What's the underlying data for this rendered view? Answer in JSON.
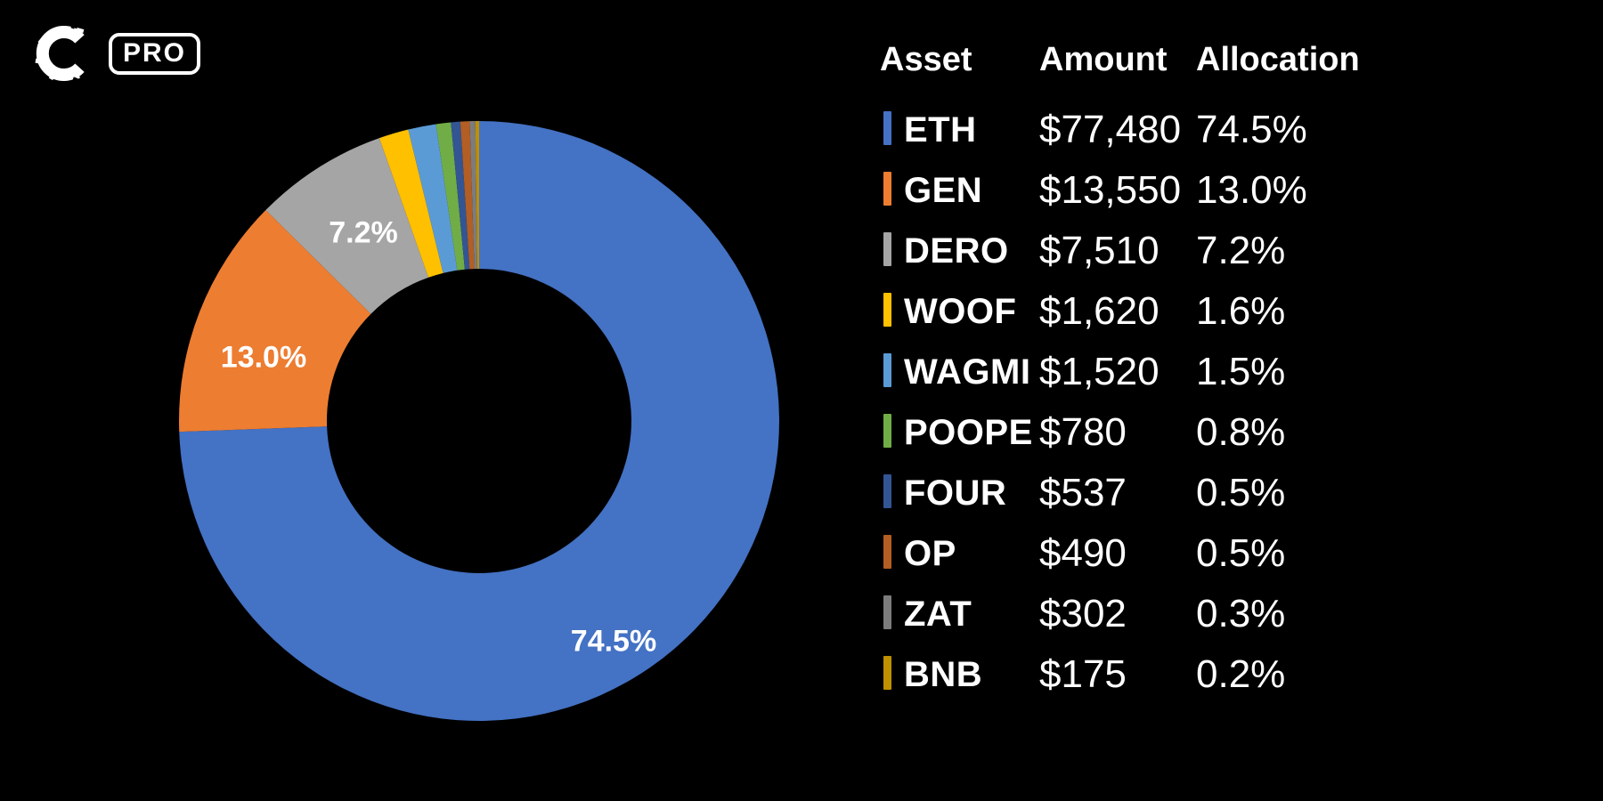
{
  "colors": {
    "background": "#000000",
    "text": "#FFFFFF"
  },
  "logo": {
    "icon": "coinstats-c-icon",
    "badge_label": "PRO"
  },
  "table": {
    "headers": [
      "Asset",
      "Amount",
      "Allocation"
    ],
    "rows": [
      {
        "asset": "ETH",
        "amount": "$77,480",
        "allocation": "74.5%",
        "color": "#4472C4"
      },
      {
        "asset": "GEN",
        "amount": "$13,550",
        "allocation": "13.0%",
        "color": "#ED7D31"
      },
      {
        "asset": "DERO",
        "amount": "$7,510",
        "allocation": "7.2%",
        "color": "#A5A5A5"
      },
      {
        "asset": "WOOF",
        "amount": "$1,620",
        "allocation": "1.6%",
        "color": "#FFC000"
      },
      {
        "asset": "WAGMI",
        "amount": "$1,520",
        "allocation": "1.5%",
        "color": "#5B9BD5"
      },
      {
        "asset": "POOPE",
        "amount": "$780",
        "allocation": "0.8%",
        "color": "#70AD47"
      },
      {
        "asset": "FOUR",
        "amount": "$537",
        "allocation": "0.5%",
        "color": "#335593"
      },
      {
        "asset": "OP",
        "amount": "$490",
        "allocation": "0.5%",
        "color": "#B25E25"
      },
      {
        "asset": "ZAT",
        "amount": "$302",
        "allocation": "0.3%",
        "color": "#7C7C7C"
      },
      {
        "asset": "BNB",
        "amount": "$175",
        "allocation": "0.2%",
        "color": "#BF9000"
      }
    ]
  },
  "chart_data": {
    "type": "pie",
    "subtype": "donut",
    "title": "",
    "categories": [
      "ETH",
      "GEN",
      "DERO",
      "WOOF",
      "WAGMI",
      "POOPE",
      "FOUR",
      "OP",
      "ZAT",
      "BNB"
    ],
    "values": [
      74.5,
      13.0,
      7.2,
      1.6,
      1.5,
      0.8,
      0.5,
      0.5,
      0.3,
      0.2
    ],
    "unit": "percent",
    "colors": [
      "#4472C4",
      "#ED7D31",
      "#A5A5A5",
      "#FFC000",
      "#5B9BD5",
      "#70AD47",
      "#335593",
      "#B25E25",
      "#7C7C7C",
      "#BF9000"
    ],
    "start_angle_deg": 0,
    "direction": "clockwise",
    "hole_radius_ratio": 0.51,
    "legend_position": "right-table",
    "labels_shown": [
      "74.5%",
      "13.0%",
      "7.2%"
    ]
  }
}
